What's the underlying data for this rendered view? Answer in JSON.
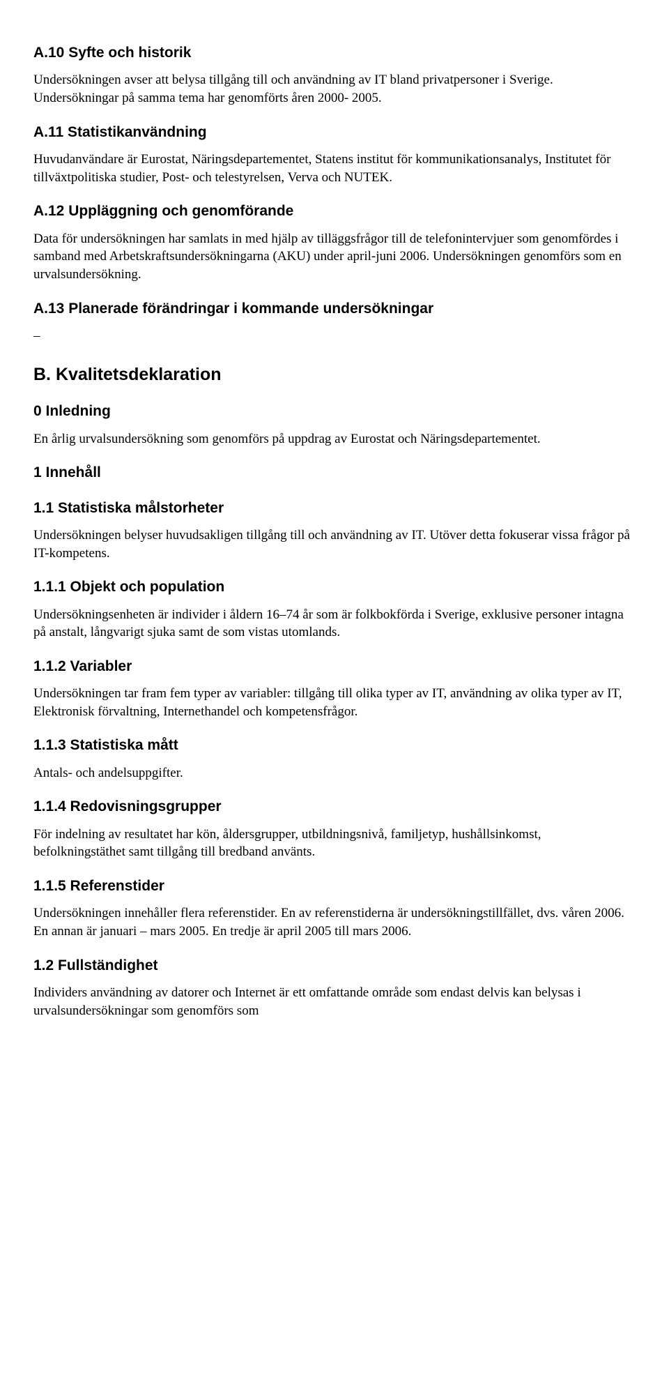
{
  "sections": {
    "a10": {
      "heading": "A.10 Syfte och historik",
      "body": "Undersökningen avser att belysa tillgång till och användning av IT bland privatpersoner i Sverige. Undersökningar på samma tema har genomförts åren 2000- 2005."
    },
    "a11": {
      "heading": "A.11 Statistikanvändning",
      "body": "Huvudanvändare är Eurostat, Näringsdepartementet, Statens institut för kommunikationsanalys, Institutet för tillväxtpolitiska studier, Post- och telestyrelsen, Verva och NUTEK."
    },
    "a12": {
      "heading": "A.12 Uppläggning och genomförande",
      "body": "Data för undersökningen har samlats in med hjälp av tilläggsfrågor till de telefonintervjuer som genomfördes i samband med Arbetskraftsundersökningarna (AKU) under april-juni 2006. Undersökningen genomförs som en urvalsundersökning."
    },
    "a13": {
      "heading": "A.13 Planerade förändringar i kommande undersökningar",
      "dash": "–"
    },
    "b": {
      "heading": "B. Kvalitetsdeklaration"
    },
    "s0": {
      "heading": "0 Inledning",
      "body": "En årlig urvalsundersökning som genomförs på uppdrag av Eurostat och Näringsdepartementet."
    },
    "s1": {
      "heading": "1 Innehåll"
    },
    "s11": {
      "heading": "1.1 Statistiska målstorheter",
      "body": "Undersökningen belyser huvudsakligen tillgång till och användning av IT. Utöver detta fokuserar vissa frågor på IT-kompetens."
    },
    "s111": {
      "heading": "1.1.1 Objekt och population",
      "body": "Undersökningsenheten är individer i åldern 16–74 år som är folkbokförda i Sverige, exklusive personer intagna på anstalt, långvarigt sjuka samt de som vistas utomlands."
    },
    "s112": {
      "heading": "1.1.2 Variabler",
      "body": "Undersökningen tar fram fem typer av variabler: tillgång till olika typer av IT, användning av olika typer av IT, Elektronisk förvaltning,  Internethandel och kompetensfrågor."
    },
    "s113": {
      "heading": "1.1.3 Statistiska mått",
      "body": "Antals- och andelsuppgifter."
    },
    "s114": {
      "heading": "1.1.4 Redovisningsgrupper",
      "body": "För indelning av resultatet har kön, åldersgrupper, utbildningsnivå, familjetyp, hushållsinkomst, befolkningstäthet samt tillgång till bredband använts."
    },
    "s115": {
      "heading": "1.1.5 Referenstider",
      "body": "Undersökningen innehåller flera referenstider. En av referenstiderna är undersökningstillfället, dvs. våren 2006. En annan är januari – mars 2005. En tredje är april 2005 till mars 2006."
    },
    "s12": {
      "heading": "1.2 Fullständighet",
      "body": "Individers användning av datorer och Internet är ett omfattande område som endast delvis kan belysas i urvalsundersökningar som genomförs som"
    }
  }
}
